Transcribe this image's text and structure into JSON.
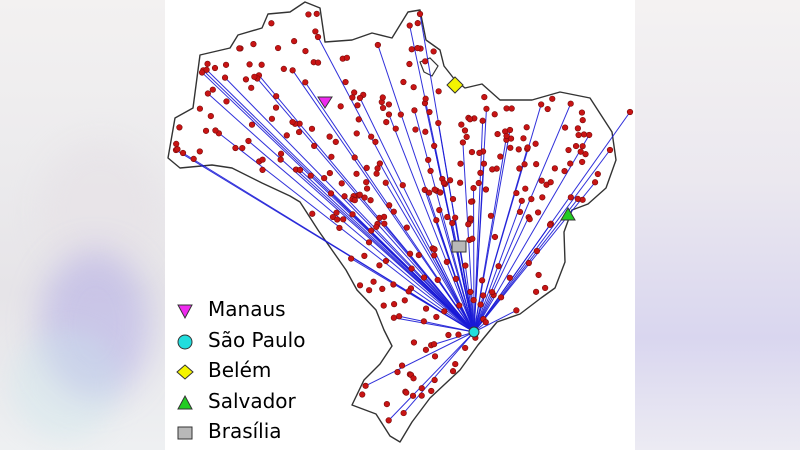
{
  "colors": {
    "country_fill": "#ffffff",
    "country_outline": "#333333",
    "route_line": "#1a1ad6",
    "city_point": "#c81414",
    "city_point_edge": "#7a0a0a",
    "manaus": "#ee2aee",
    "sao_paulo": "#22dddd",
    "belem": "#f4f400",
    "salvador": "#22cc22",
    "brasilia": "#b8b8b8"
  },
  "legend": [
    {
      "label": "Manaus",
      "marker": "triangle-down",
      "color": "#ee2aee"
    },
    {
      "label": "São Paulo",
      "marker": "circle",
      "color": "#22dddd"
    },
    {
      "label": "Belém",
      "marker": "diamond",
      "color": "#f4f400"
    },
    {
      "label": "Salvador",
      "marker": "triangle-up",
      "color": "#22cc22"
    },
    {
      "label": "Brasília",
      "marker": "square",
      "color": "#b8b8b8"
    }
  ]
}
